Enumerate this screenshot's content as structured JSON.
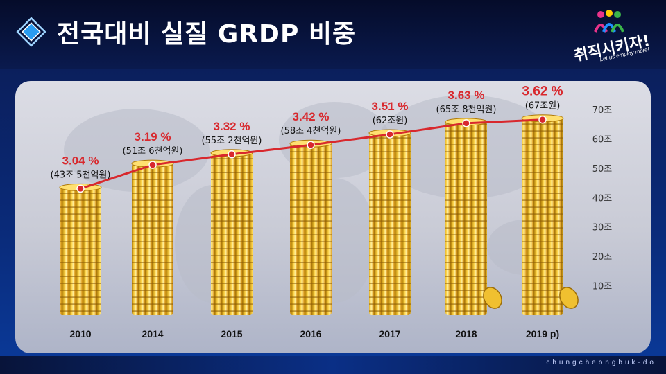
{
  "header": {
    "title": "전국대비 실질 GRDP 비중",
    "title_icon": "diamond-icon"
  },
  "logo": {
    "text": "취직시키자!",
    "subtext": "Let us employ more!",
    "icon": "people-icon"
  },
  "footer": {
    "text": "chungcheongbuk-do"
  },
  "chart_data": {
    "type": "bar",
    "title": "",
    "xlabel": "",
    "ylabel": "",
    "categories": [
      "2010",
      "2014",
      "2015",
      "2016",
      "2017",
      "2018",
      "2019 p)"
    ],
    "series": [
      {
        "values": [
          43.5,
          51.6,
          55.2,
          58.4,
          62,
          65.8,
          67
        ],
        "labels": [
          "(43조 5천억원)",
          "(51조 6천억원)",
          "(55조 2천억원)",
          "(58조 4천억원)",
          "(62조원)",
          "(65조 8천억원)",
          "(67조원)"
        ]
      },
      {
        "type": "line",
        "values": [
          3.04,
          3.19,
          3.32,
          3.42,
          3.51,
          3.63,
          3.62
        ],
        "labels": [
          "3.04 %",
          "3.19 %",
          "3.32 %",
          "3.42 %",
          "3.51 %",
          "3.63 %",
          "3.62 %"
        ],
        "color": "#d8282d"
      }
    ],
    "yticks": [
      "10조",
      "20조",
      "30조",
      "40조",
      "50조",
      "60조",
      "70조"
    ],
    "ylim": [
      0,
      70
    ],
    "grid": false,
    "bar_style": "gold-coin-stacks",
    "coin_color": "#f3c33a"
  }
}
